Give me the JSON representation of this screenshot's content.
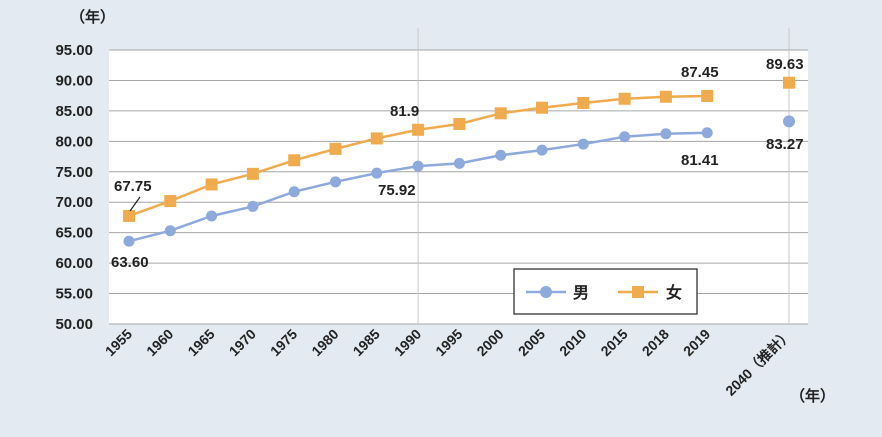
{
  "chart_data": {
    "type": "line",
    "y_unit_label": "（年）",
    "x_unit_label": "（年）",
    "ylim": [
      50,
      95
    ],
    "yticks": [
      "50.00",
      "55.00",
      "60.00",
      "65.00",
      "70.00",
      "75.00",
      "80.00",
      "85.00",
      "90.00",
      "95.00"
    ],
    "categories": [
      "1955",
      "1960",
      "1965",
      "1970",
      "1975",
      "1980",
      "1985",
      "1990",
      "1995",
      "2000",
      "2005",
      "2010",
      "2015",
      "2018",
      "2019"
    ],
    "projection_category": "2040（推計）",
    "series": [
      {
        "name": "男",
        "color": "#8ea9db",
        "marker": "circle",
        "values": [
          63.6,
          65.32,
          67.74,
          69.31,
          71.73,
          73.35,
          74.78,
          75.92,
          76.38,
          77.72,
          78.56,
          79.55,
          80.75,
          81.25,
          81.41
        ],
        "projection": 83.27
      },
      {
        "name": "女",
        "color": "#f0ab4e",
        "marker": "square",
        "values": [
          67.75,
          70.19,
          72.92,
          74.66,
          76.89,
          78.76,
          80.48,
          81.9,
          82.85,
          84.6,
          85.52,
          86.3,
          86.99,
          87.32,
          87.45
        ],
        "projection": 89.63
      }
    ],
    "labels": {
      "female_1955": "67.75",
      "male_1955": "63.60",
      "female_1990": "81.9",
      "male_1990": "75.92",
      "female_2019": "87.45",
      "male_2019": "81.41",
      "female_2040": "89.63",
      "male_2040": "83.27"
    },
    "legend": [
      "男",
      "女"
    ]
  }
}
